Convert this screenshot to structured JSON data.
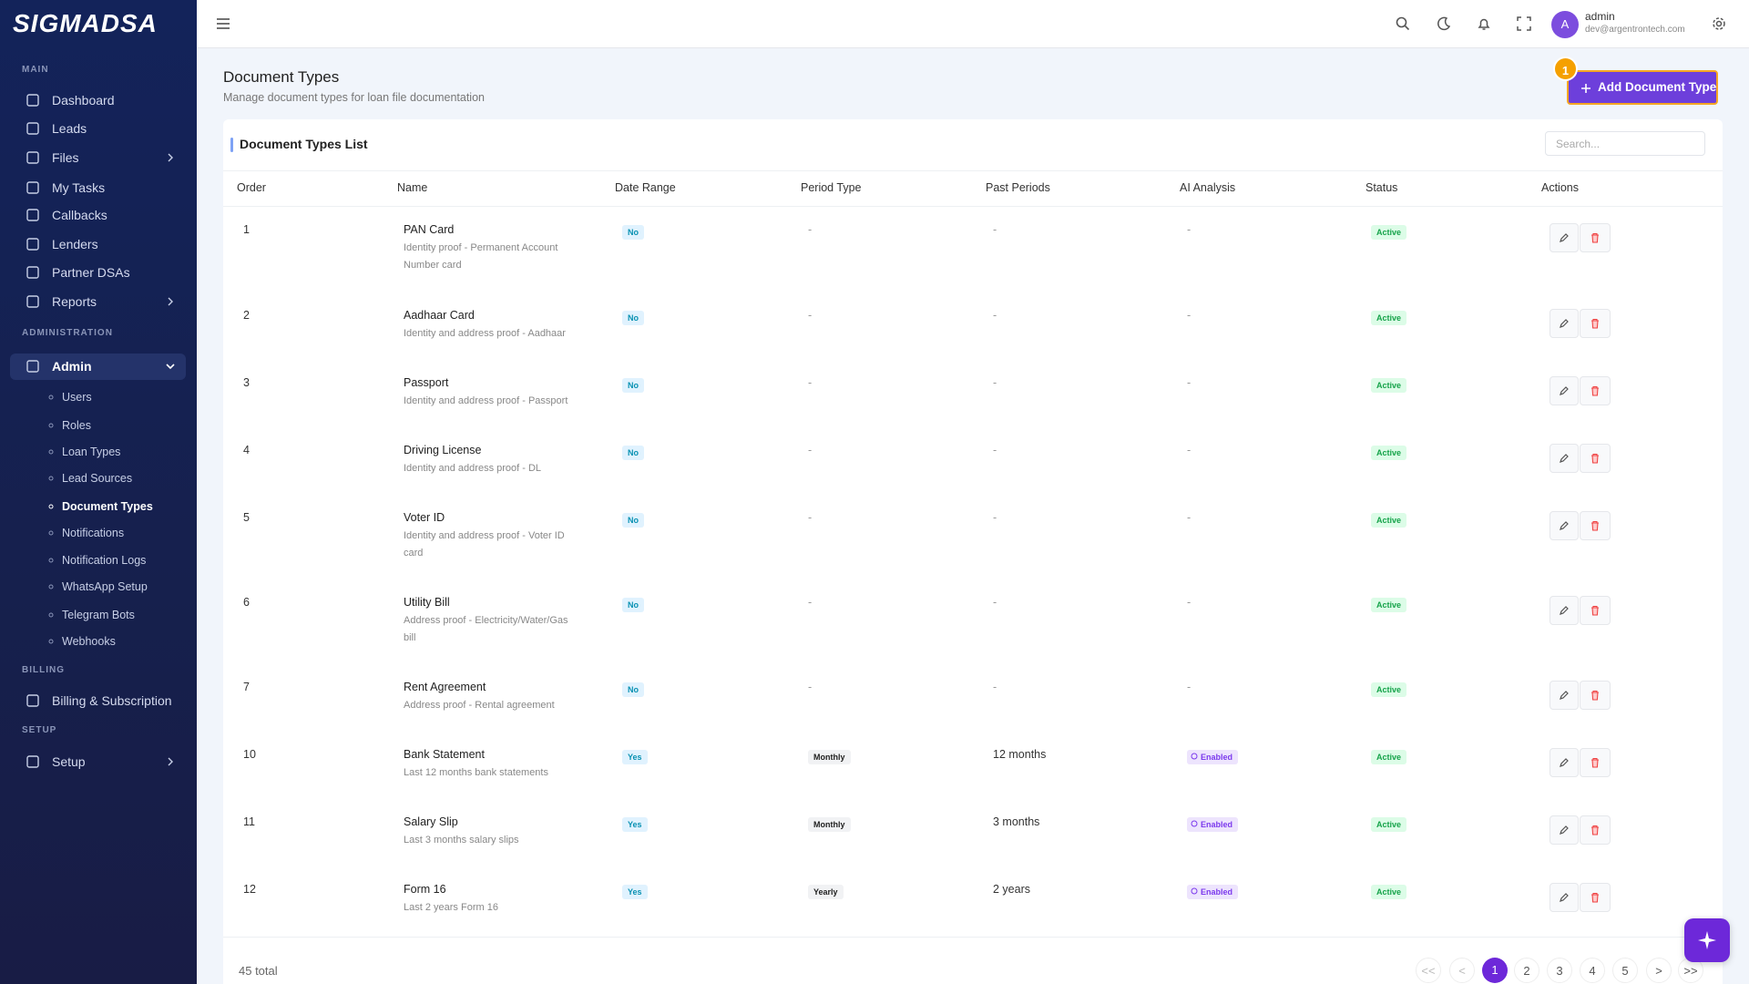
{
  "sidebar": {
    "logo": "SIGMADSA",
    "sections": [
      {
        "label": "MAIN",
        "items": [
          "Dashboard",
          "Leads",
          "Files",
          "My Tasks",
          "Callbacks",
          "Lenders",
          "Partner DSAs",
          "Reports"
        ]
      },
      {
        "label": "ADMINISTRATION",
        "items": [
          "Admin"
        ],
        "subitems": [
          "Users",
          "Roles",
          "Loan Types",
          "Lead Sources",
          "Document Types",
          "Notifications",
          "Notification Logs",
          "WhatsApp Setup",
          "Telegram Bots",
          "Webhooks"
        ]
      },
      {
        "label": "BILLING",
        "items": [
          "Billing & Subscription"
        ]
      },
      {
        "label": "SETUP",
        "items": [
          "Setup"
        ]
      }
    ]
  },
  "topbar": {
    "avatar": "A",
    "user": "admin",
    "email": "dev@argentrontech.com"
  },
  "header": {
    "title": "Document Types",
    "subtitle": "Manage document types for loan file documentation",
    "badge": "1",
    "button": "Add Document Type"
  },
  "table": {
    "title": "Document Types List",
    "search_placeholder": "Search...",
    "columns": [
      "Order",
      "Name",
      "Date Range",
      "Period Type",
      "Past Periods",
      "AI Analysis",
      "Status",
      "Actions"
    ],
    "rows": [
      {
        "order": 1,
        "name": "PAN Card",
        "description": "Identity proof - Permanent Account Number card",
        "date_range": "No",
        "period_type": "-",
        "past_periods": "-",
        "ai_analysis": "-",
        "status": "Active"
      },
      {
        "order": 2,
        "name": "Aadhaar Card",
        "description": "Identity and address proof - Aadhaar",
        "date_range": "No",
        "period_type": "-",
        "past_periods": "-",
        "ai_analysis": "-",
        "status": "Active"
      },
      {
        "order": 3,
        "name": "Passport",
        "description": "Identity and address proof - Passport",
        "date_range": "No",
        "period_type": "-",
        "past_periods": "-",
        "ai_analysis": "-",
        "status": "Active"
      },
      {
        "order": 4,
        "name": "Driving License",
        "description": "Identity and address proof - DL",
        "date_range": "No",
        "period_type": "-",
        "past_periods": "-",
        "ai_analysis": "-",
        "status": "Active"
      },
      {
        "order": 5,
        "name": "Voter ID",
        "description": "Identity and address proof - Voter ID card",
        "date_range": "No",
        "period_type": "-",
        "past_periods": "-",
        "ai_analysis": "-",
        "status": "Active"
      },
      {
        "order": 6,
        "name": "Utility Bill",
        "description": "Address proof - Electricity/Water/Gas bill",
        "date_range": "No",
        "period_type": "-",
        "past_periods": "-",
        "ai_analysis": "-",
        "status": "Active"
      },
      {
        "order": 7,
        "name": "Rent Agreement",
        "description": "Address proof - Rental agreement",
        "date_range": "No",
        "period_type": "-",
        "past_periods": "-",
        "ai_analysis": "-",
        "status": "Active"
      },
      {
        "order": 10,
        "name": "Bank Statement",
        "description": "Last 12 months bank statements",
        "date_range": "Yes",
        "period_type": "Monthly",
        "past_periods": "12 months",
        "ai_analysis": "Enabled",
        "status": "Active"
      },
      {
        "order": 11,
        "name": "Salary Slip",
        "description": "Last 3 months salary slips",
        "date_range": "Yes",
        "period_type": "Monthly",
        "past_periods": "3 months",
        "ai_analysis": "Enabled",
        "status": "Active"
      },
      {
        "order": 12,
        "name": "Form 16",
        "description": "Last 2 years Form 16",
        "date_range": "Yes",
        "period_type": "Yearly",
        "past_periods": "2 years",
        "ai_analysis": "Enabled",
        "status": "Active"
      }
    ]
  },
  "footer": {
    "total": "45 total",
    "pagination": [
      "<<",
      "<",
      "1",
      "2",
      "3",
      "4",
      "5",
      ">",
      ">>"
    ],
    "current": "1"
  }
}
